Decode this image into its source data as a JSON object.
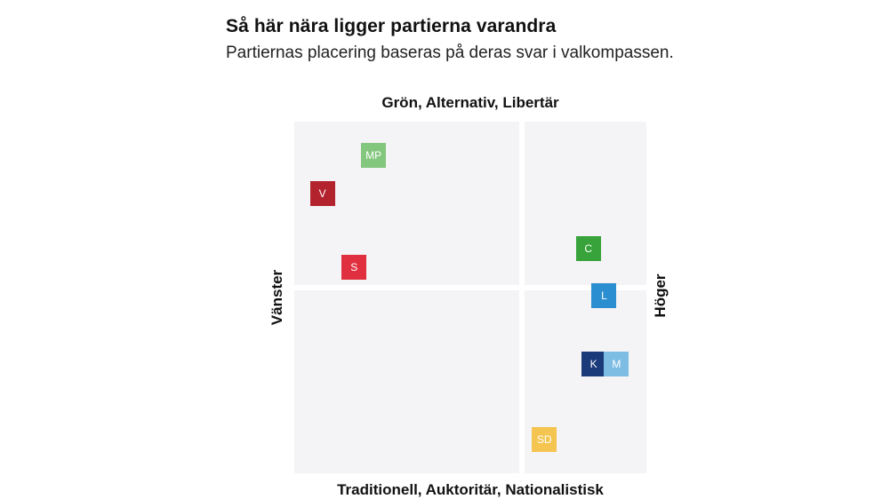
{
  "header": {
    "title": "Så här nära ligger partierna varandra",
    "subtitle": "Partiernas placering baseras på deras svar i valkompassen."
  },
  "chart_data": {
    "type": "scatter",
    "title": "Så här nära ligger partierna varandra",
    "subtitle": "Partiernas placering baseras på deras svar i valkompassen.",
    "axis_labels": {
      "top": "Grön, Alternativ, Libertär",
      "bottom": "Traditionell, Auktoritär, Nationalistisk",
      "left": "Vänster",
      "right": "Höger"
    },
    "xlim": [
      -1,
      1
    ],
    "ylim": [
      -1,
      1
    ],
    "grid": false,
    "points": [
      {
        "label": "MP",
        "x": -0.55,
        "y": 0.81,
        "color": "#83c67e"
      },
      {
        "label": "V",
        "x": -0.84,
        "y": 0.59,
        "color": "#b3232e"
      },
      {
        "label": "S",
        "x": -0.66,
        "y": 0.17,
        "color": "#e03040"
      },
      {
        "label": "C",
        "x": 0.67,
        "y": 0.28,
        "color": "#37a33a"
      },
      {
        "label": "L",
        "x": 0.76,
        "y": 0.01,
        "color": "#2b8ed0"
      },
      {
        "label": "K",
        "x": 0.7,
        "y": -0.38,
        "color": "#1b3a7a"
      },
      {
        "label": "M",
        "x": 0.83,
        "y": -0.38,
        "color": "#7ebde3"
      },
      {
        "label": "SD",
        "x": 0.42,
        "y": -0.81,
        "color": "#f5c551"
      }
    ]
  }
}
